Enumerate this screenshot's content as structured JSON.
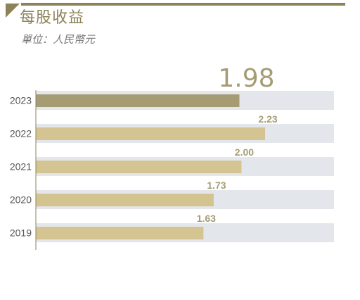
{
  "header": {
    "title": "每股收益",
    "subtitle": "單位：人民幣元"
  },
  "colors": {
    "accent": "#8c8358",
    "highlight_bar": "#a59c74",
    "bar": "#d4c491",
    "track": "#e3e6ea",
    "axis": "#8c8358",
    "value_label": "#a59c74",
    "year_label": "#555555"
  },
  "chart_data": {
    "type": "bar",
    "orientation": "horizontal",
    "categories": [
      "2023",
      "2022",
      "2021",
      "2020",
      "2019"
    ],
    "values": [
      1.98,
      2.23,
      2.0,
      1.73,
      1.63
    ],
    "value_labels": [
      "1.98",
      "2.23",
      "2.00",
      "1.73",
      "1.63"
    ],
    "highlight_index": 0,
    "xlim": [
      0,
      2.9
    ],
    "grid": false,
    "legend": "none"
  }
}
